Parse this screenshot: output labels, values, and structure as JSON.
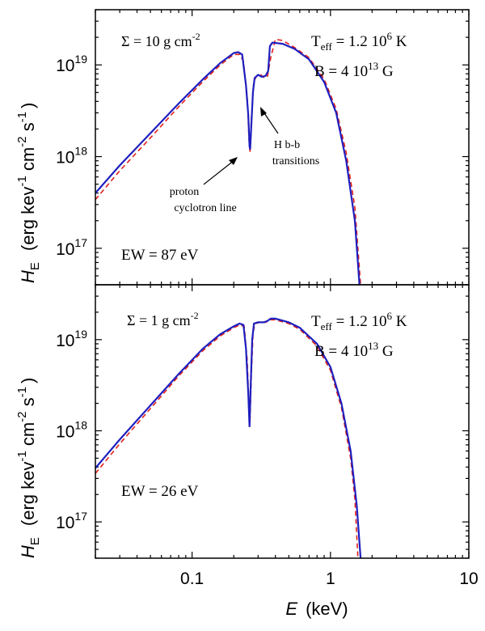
{
  "colors": {
    "model": "#1f1fbf",
    "fit": "#e0201a",
    "axis": "#000000"
  },
  "labels": {
    "xlabel_var": "E",
    "xlabel_unit": "(keV)",
    "ylabel_var": "H",
    "ylabel_sub": "E",
    "ylabel_unit_prefix": "(erg  kev",
    "ylabel_unit_mid1": " cm",
    "ylabel_unit_mid2": " s",
    "ylabel_unit_end": ")",
    "ylabel_exp1": "-1",
    "ylabel_exp2": "-2",
    "ylabel_exp3": "-1"
  },
  "chart_data": [
    {
      "type": "line",
      "panel": "top",
      "xscale": "log",
      "yscale": "log",
      "xlim": [
        0.02,
        10
      ],
      "ylim": [
        4e+16,
        4e+19
      ],
      "x_ticks": [
        {
          "value": 0.1,
          "label": "0.1"
        },
        {
          "value": 1,
          "label": "1"
        },
        {
          "value": 10,
          "label": "10"
        }
      ],
      "y_ticks": [
        {
          "value": 1e+17,
          "base": "10",
          "exp": "17"
        },
        {
          "value": 1e+18,
          "base": "10",
          "exp": "18"
        },
        {
          "value": 1e+19,
          "base": "10",
          "exp": "19"
        }
      ],
      "annotations": {
        "sigma_pre": "Σ = 10  g cm",
        "sigma_exp": "-2",
        "teff_pre": "T",
        "teff_sub": "eff",
        "teff_mid": " = 1.2 10",
        "teff_exp": "6",
        "teff_post": " K",
        "b_pre": "B = 4 10",
        "b_exp": "13",
        "b_post": " G",
        "ew": "EW = 87 eV",
        "line1": "proton",
        "line2": "cyclotron line",
        "trans1": "H b-b",
        "trans2": "transitions"
      },
      "series": [
        {
          "style": "solid",
          "points": [
            [
              0.02,
              4e+17
            ],
            [
              0.03,
              8e+17
            ],
            [
              0.05,
              1.8e+18
            ],
            [
              0.08,
              3.8e+18
            ],
            [
              0.12,
              7e+18
            ],
            [
              0.16,
              1.05e+19
            ],
            [
              0.2,
              1.35e+19
            ],
            [
              0.215,
              1.38e+19
            ],
            [
              0.23,
              1.3e+19
            ],
            [
              0.245,
              6e+18
            ],
            [
              0.255,
              2.8e+18
            ],
            [
              0.26,
              1.3e+18
            ],
            [
              0.263,
              1.2e+18
            ],
            [
              0.267,
              2e+18
            ],
            [
              0.275,
              5e+18
            ],
            [
              0.283,
              7.2e+18
            ],
            [
              0.3,
              7.8e+18
            ],
            [
              0.32,
              7.4e+18
            ],
            [
              0.34,
              7.6e+18
            ],
            [
              0.355,
              8.6e+18
            ],
            [
              0.365,
              1.6e+19
            ],
            [
              0.38,
              1.75e+19
            ],
            [
              0.45,
              1.7e+19
            ],
            [
              0.55,
              1.5e+19
            ],
            [
              0.7,
              1.15e+19
            ],
            [
              0.9,
              6.5e+18
            ],
            [
              1.1,
              3e+18
            ],
            [
              1.3,
              9e+17
            ],
            [
              1.5,
              2e+17
            ],
            [
              1.62,
              4e+16
            ]
          ]
        },
        {
          "style": "dashed",
          "points": [
            [
              0.02,
              3.4e+17
            ],
            [
              0.03,
              7e+17
            ],
            [
              0.05,
              1.6e+18
            ],
            [
              0.08,
              3.5e+18
            ],
            [
              0.12,
              6.6e+18
            ],
            [
              0.16,
              1e+19
            ],
            [
              0.2,
              1.3e+19
            ],
            [
              0.22,
              1.3e+19
            ],
            [
              0.235,
              1.1e+19
            ],
            [
              0.25,
              4.5e+18
            ],
            [
              0.258,
              1.5e+18
            ],
            [
              0.262,
              1.1e+18
            ],
            [
              0.268,
              2.5e+18
            ],
            [
              0.278,
              6.2e+18
            ],
            [
              0.29,
              7.5e+18
            ],
            [
              0.31,
              7.9e+18
            ],
            [
              0.33,
              7.3e+18
            ],
            [
              0.35,
              7.4e+18
            ],
            [
              0.37,
              1.2e+19
            ],
            [
              0.4,
              1.9e+19
            ],
            [
              0.45,
              1.85e+19
            ],
            [
              0.55,
              1.55e+19
            ],
            [
              0.7,
              1.2e+19
            ],
            [
              0.9,
              7e+18
            ],
            [
              1.1,
              3.3e+18
            ],
            [
              1.3,
              1.1e+18
            ],
            [
              1.5,
              2.8e+17
            ],
            [
              1.65,
              4e+16
            ]
          ]
        }
      ]
    },
    {
      "type": "line",
      "panel": "bottom",
      "xscale": "log",
      "yscale": "log",
      "xlim": [
        0.02,
        10
      ],
      "ylim": [
        4e+16,
        4e+19
      ],
      "x_ticks": [
        {
          "value": 0.1,
          "label": "0.1"
        },
        {
          "value": 1,
          "label": "1"
        },
        {
          "value": 10,
          "label": "10"
        }
      ],
      "y_ticks": [
        {
          "value": 1e+17,
          "base": "10",
          "exp": "17"
        },
        {
          "value": 1e+18,
          "base": "10",
          "exp": "18"
        },
        {
          "value": 1e+19,
          "base": "10",
          "exp": "19"
        }
      ],
      "annotations": {
        "sigma_pre": "Σ = 1  g cm",
        "sigma_exp": "-2",
        "teff_pre": "T",
        "teff_sub": "eff",
        "teff_mid": " = 1.2 10",
        "teff_exp": "6",
        "teff_post": " K",
        "b_pre": "B = 4 10",
        "b_exp": "13",
        "b_post": " G",
        "ew": "EW = 26 eV"
      },
      "series": [
        {
          "style": "solid",
          "points": [
            [
              0.02,
              3.9e+17
            ],
            [
              0.03,
              8e+17
            ],
            [
              0.05,
              1.9e+18
            ],
            [
              0.08,
              4.2e+18
            ],
            [
              0.12,
              8e+18
            ],
            [
              0.16,
              1.15e+19
            ],
            [
              0.2,
              1.4e+19
            ],
            [
              0.22,
              1.5e+19
            ],
            [
              0.235,
              1.45e+19
            ],
            [
              0.245,
              8e+18
            ],
            [
              0.255,
              2.5e+18
            ],
            [
              0.26,
              1.1e+18
            ],
            [
              0.265,
              3e+18
            ],
            [
              0.272,
              1e+19
            ],
            [
              0.28,
              1.5e+19
            ],
            [
              0.3,
              1.55e+19
            ],
            [
              0.33,
              1.55e+19
            ],
            [
              0.35,
              1.6e+19
            ],
            [
              0.37,
              1.7e+19
            ],
            [
              0.4,
              1.7e+19
            ],
            [
              0.5,
              1.55e+19
            ],
            [
              0.6,
              1.35e+19
            ],
            [
              0.8,
              9e+18
            ],
            [
              1,
              5e+18
            ],
            [
              1.2,
              2e+18
            ],
            [
              1.4,
              6e+17
            ],
            [
              1.55,
              1.5e+17
            ],
            [
              1.65,
              4e+16
            ]
          ]
        },
        {
          "style": "dashed",
          "points": [
            [
              0.02,
              3.4e+17
            ],
            [
              0.03,
              7.2e+17
            ],
            [
              0.05,
              1.75e+18
            ],
            [
              0.08,
              4e+18
            ],
            [
              0.12,
              7.6e+18
            ],
            [
              0.16,
              1.1e+19
            ],
            [
              0.2,
              1.35e+19
            ],
            [
              0.22,
              1.45e+19
            ],
            [
              0.238,
              1.4e+19
            ],
            [
              0.25,
              6e+18
            ],
            [
              0.258,
              1.8e+18
            ],
            [
              0.262,
              1.3e+18
            ],
            [
              0.268,
              4e+18
            ],
            [
              0.276,
              1.2e+19
            ],
            [
              0.285,
              1.5e+19
            ],
            [
              0.31,
              1.55e+19
            ],
            [
              0.34,
              1.55e+19
            ],
            [
              0.37,
              1.65e+19
            ],
            [
              0.4,
              1.65e+19
            ],
            [
              0.5,
              1.5e+19
            ],
            [
              0.6,
              1.3e+19
            ],
            [
              0.8,
              8.5e+18
            ],
            [
              1,
              4.6e+18
            ],
            [
              1.2,
              1.8e+18
            ],
            [
              1.4,
              5e+17
            ],
            [
              1.5,
              1.8e+17
            ],
            [
              1.58,
              4e+16
            ]
          ]
        }
      ]
    }
  ]
}
